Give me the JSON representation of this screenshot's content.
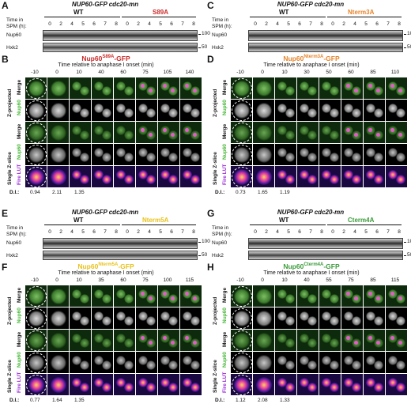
{
  "panel_labels": [
    "A",
    "B",
    "C",
    "D",
    "E",
    "F",
    "G",
    "H"
  ],
  "western_title": "NUP60-GFP cdc20-mn",
  "time_label_1": "Time in",
  "time_label_2": "SPM (h):",
  "times": [
    "0",
    "2",
    "4",
    "5",
    "6",
    "7",
    "8"
  ],
  "row_nup60": "Nup60",
  "row_hxk2": "Hxk2",
  "mw_100": "100",
  "mw_50": "50",
  "blots": {
    "A": {
      "wt": "WT",
      "mut": "S89A",
      "mut_color": "#cc2a2a"
    },
    "C": {
      "wt": "WT",
      "mut": "Nterm3A",
      "mut_color": "#e8842a"
    },
    "E": {
      "wt": "WT",
      "mut": "Nterm5A",
      "mut_color": "#e8c21a"
    },
    "G": {
      "wt": "WT",
      "mut": "Cterm4A",
      "mut_color": "#3a9a3a"
    }
  },
  "micro_subtitle": "Time relative to anaphase I onset (min)",
  "micro": {
    "B": {
      "name": "Nup60",
      "sup": "S89A",
      "tail": "-GFP",
      "color": "#cc2a2a",
      "times": [
        "-10",
        "0",
        "10",
        "40",
        "60",
        "75",
        "105",
        "140"
      ],
      "di": [
        "0.94",
        "2.11",
        "1.35"
      ]
    },
    "D": {
      "name": "Nup60",
      "sup": "Nterm3A",
      "tail": "-GFP",
      "color": "#e8842a",
      "times": [
        "-10",
        "0",
        "10",
        "30",
        "50",
        "60",
        "85",
        "110"
      ],
      "di": [
        "0.73",
        "1.65",
        "1.19"
      ]
    },
    "F": {
      "name": "Nup60",
      "sup": "Nterm5A",
      "tail": "-GFP",
      "color": "#e8c21a",
      "times": [
        "-10",
        "0",
        "10",
        "35",
        "60",
        "75",
        "100",
        "115"
      ],
      "di": [
        "0.77",
        "1.64",
        "1.35"
      ]
    },
    "H": {
      "name": "Nup60",
      "sup": "Cterm4A",
      "tail": "-GFP",
      "color": "#3a9a3a",
      "times": [
        "-10",
        "0",
        "10",
        "40",
        "55",
        "75",
        "85",
        "115"
      ],
      "di": [
        "1.12",
        "2.08",
        "1.33"
      ]
    }
  },
  "side_labels": {
    "zproj": "Z-projected",
    "single": "Single Z-slice",
    "merge": "Merge",
    "nup60": "Nup60",
    "fire": "Fire LUT"
  },
  "di_label": "D.I.:"
}
